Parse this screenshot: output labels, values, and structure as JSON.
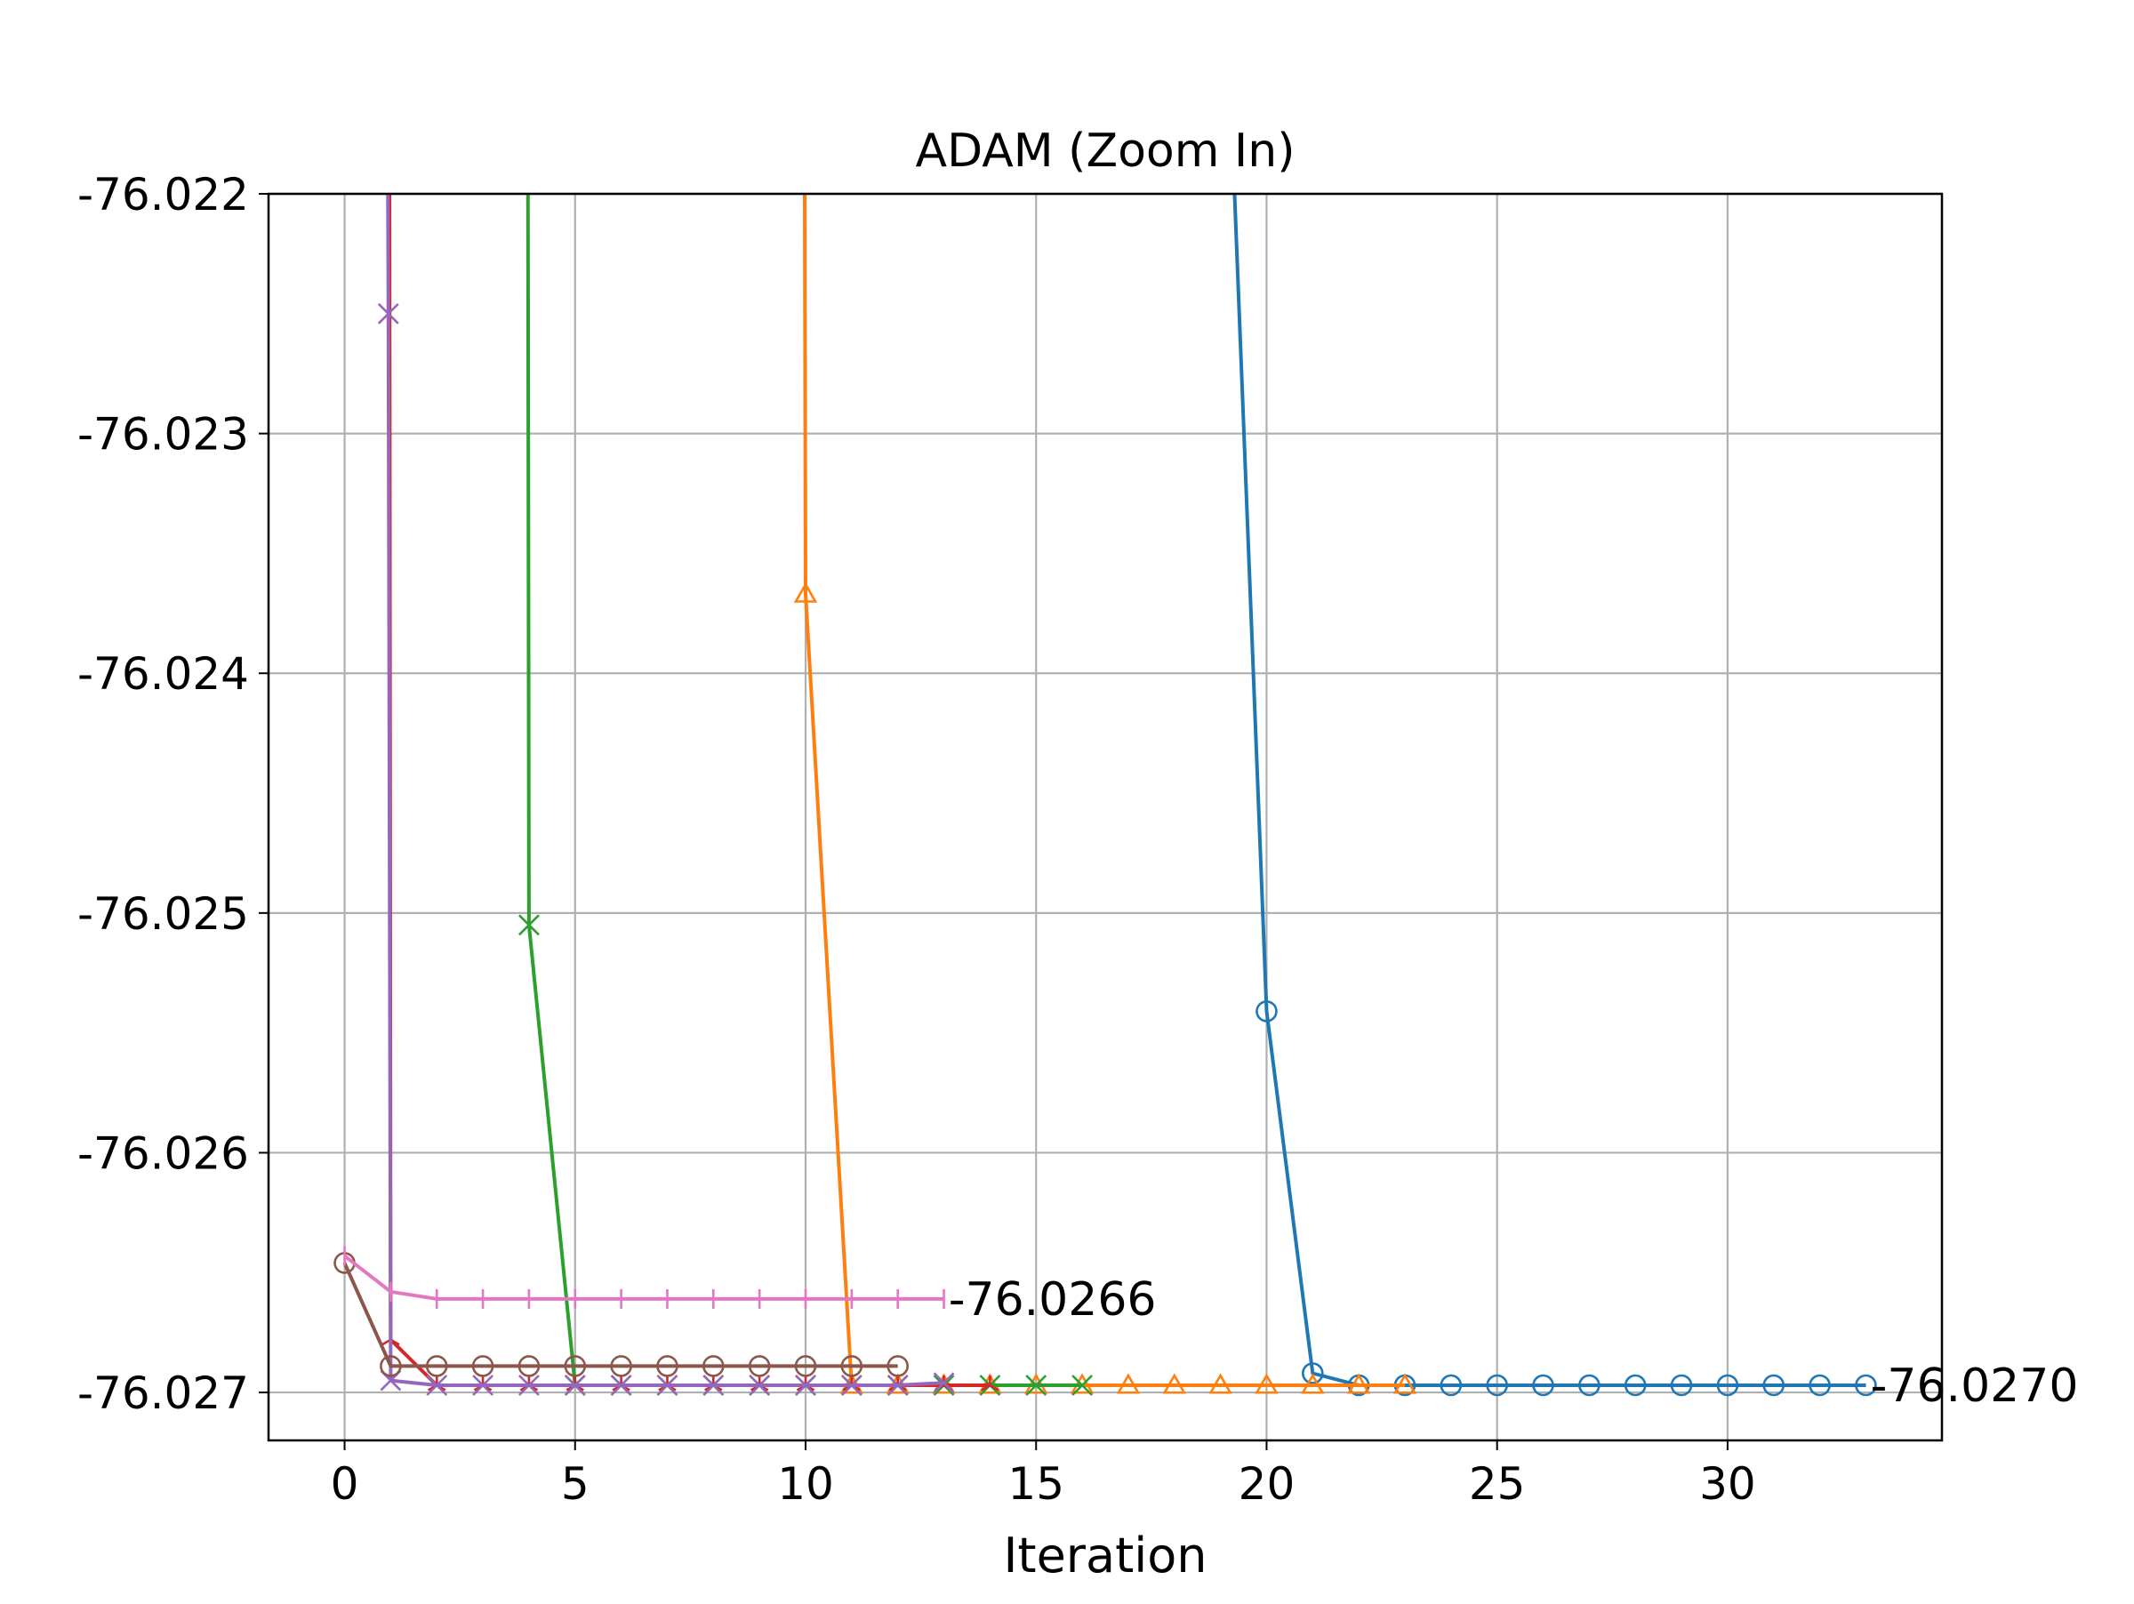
{
  "chart_data": {
    "type": "line",
    "title": "ADAM (Zoom In)",
    "xlabel": "Iteration",
    "ylabel": "E",
    "xlim": [
      -1.65,
      34.65
    ],
    "ylim": [
      -76.0272,
      -76.022
    ],
    "x_ticks": [
      0,
      5,
      10,
      15,
      20,
      25,
      30
    ],
    "y_ticks": [
      -76.022,
      -76.023,
      -76.024,
      -76.025,
      -76.026,
      -76.027
    ],
    "x_tick_labels": [
      "0",
      "5",
      "10",
      "15",
      "20",
      "25",
      "30"
    ],
    "y_tick_labels": [
      "-76.022",
      "-76.023",
      "-76.024",
      "-76.025",
      "-76.026",
      "-76.027"
    ],
    "grid": true,
    "legend": "none",
    "series": [
      {
        "color": "#1f77b4",
        "marker": "circle",
        "x": [
          19,
          20,
          21,
          22,
          23,
          24,
          25,
          26,
          27,
          28,
          29,
          30,
          31,
          32,
          33
        ],
        "y": [
          -76.0205,
          -76.02541,
          -76.02692,
          -76.02697,
          -76.02697,
          -76.02697,
          -76.02697,
          -76.02697,
          -76.02697,
          -76.02697,
          -76.02697,
          -76.02697,
          -76.02697,
          -76.02697,
          -76.02697
        ]
      },
      {
        "color": "#ff7f0e",
        "marker": "triangle",
        "x": [
          9.97,
          10,
          11,
          12,
          13,
          14,
          15,
          16,
          17,
          18,
          19,
          20,
          21,
          22,
          23
        ],
        "y": [
          -76.021,
          -76.02367,
          -76.02697,
          -76.02697,
          -76.02697,
          -76.02697,
          -76.02697,
          -76.02697,
          -76.02697,
          -76.02697,
          -76.02697,
          -76.02697,
          -76.02697,
          -76.02697,
          -76.02697
        ]
      },
      {
        "color": "#2ca02c",
        "marker": "x",
        "x": [
          3.97,
          4,
          5,
          6,
          7,
          8,
          9,
          10,
          11,
          12,
          13,
          14,
          15,
          16
        ],
        "y": [
          -76.021,
          -76.02505,
          -76.02697,
          -76.02697,
          -76.02697,
          -76.02697,
          -76.02697,
          -76.02697,
          -76.02697,
          -76.02697,
          -76.02697,
          -76.02697,
          -76.02697,
          -76.02697
        ]
      },
      {
        "color": "#d62728",
        "marker": "tri_up",
        "x": [
          0.97,
          1,
          2,
          3,
          4,
          5,
          6,
          7,
          8,
          9,
          10,
          11,
          12,
          13,
          14
        ],
        "y": [
          -76.021,
          -76.02678,
          -76.02697,
          -76.02697,
          -76.02697,
          -76.02697,
          -76.02697,
          -76.02697,
          -76.02697,
          -76.02697,
          -76.02697,
          -76.02697,
          -76.02697,
          -76.02697,
          -76.02697
        ]
      },
      {
        "color": "#9467bd",
        "marker": "x",
        "x": [
          0.92,
          0.95,
          1,
          2,
          3,
          4,
          5,
          6,
          7,
          8,
          9,
          10,
          11,
          12,
          13
        ],
        "y": [
          -76.021,
          -76.0225,
          -76.02695,
          -76.02697,
          -76.02697,
          -76.02697,
          -76.02697,
          -76.02697,
          -76.02697,
          -76.02697,
          -76.02697,
          -76.02697,
          -76.02697,
          -76.02697,
          -76.02696
        ]
      },
      {
        "color": "#8c564b",
        "marker": "circle",
        "x": [
          0,
          1,
          2,
          3,
          4,
          5,
          6,
          7,
          8,
          9,
          10,
          11,
          12
        ],
        "y": [
          -76.02646,
          -76.02689,
          -76.02689,
          -76.02689,
          -76.02689,
          -76.02689,
          -76.02689,
          -76.02689,
          -76.02689,
          -76.02689,
          -76.02689,
          -76.02689,
          -76.02689
        ]
      },
      {
        "color": "#e377c2",
        "marker": "vline",
        "x": [
          0,
          1,
          2,
          3,
          4,
          5,
          6,
          7,
          8,
          9,
          10,
          11,
          12,
          13
        ],
        "y": [
          -76.02643,
          -76.02658,
          -76.02661,
          -76.02661,
          -76.02661,
          -76.02661,
          -76.02661,
          -76.02661,
          -76.02661,
          -76.02661,
          -76.02661,
          -76.02661,
          -76.02661,
          -76.02661
        ]
      }
    ],
    "annotations": [
      {
        "text": "-76.0266",
        "x": 13.1,
        "y": -76.02661
      },
      {
        "text": "-76.0270",
        "x": 33.1,
        "y": -76.02697
      }
    ]
  }
}
